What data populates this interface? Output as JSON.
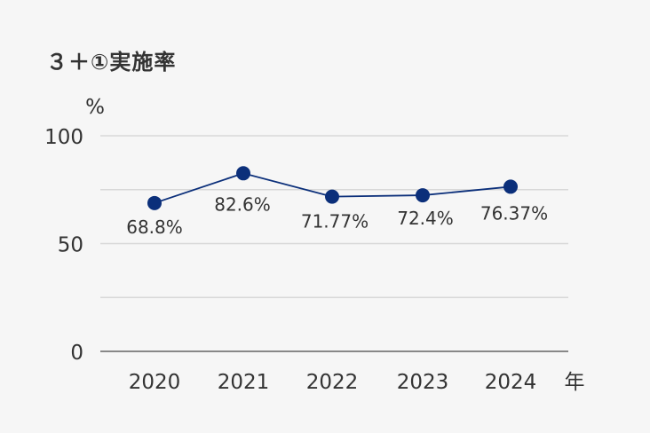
{
  "chart_data": {
    "type": "line",
    "title": "３＋①実施率",
    "y_unit": "%",
    "x_unit": "年",
    "categories": [
      "2020",
      "2021",
      "2022",
      "2023",
      "2024"
    ],
    "series": [
      {
        "values": [
          68.8,
          82.6,
          71.77,
          72.4,
          76.37
        ],
        "labels": [
          "68.8%",
          "82.6%",
          "71.77%",
          "72.4%",
          "76.37%"
        ]
      }
    ],
    "ylim": [
      0,
      100
    ],
    "yticks": [
      0,
      50,
      100
    ],
    "grid": true,
    "legend": "none",
    "color": "#0b2f7a"
  }
}
